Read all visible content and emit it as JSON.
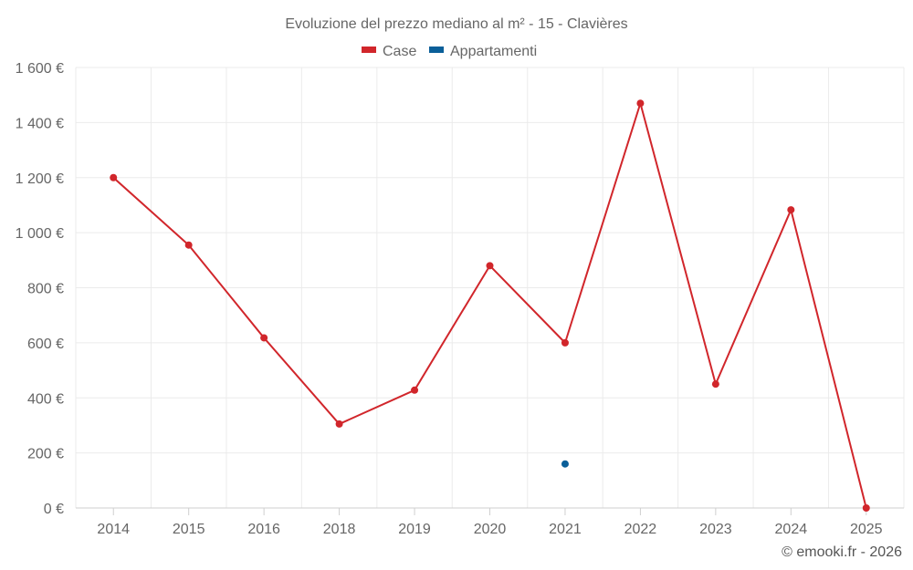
{
  "chart_data": {
    "type": "line",
    "title": "Evoluzione del prezzo mediano al m² - 15 - Clavières",
    "categories": [
      "2014",
      "2015",
      "2016",
      "2018",
      "2019",
      "2020",
      "2021",
      "2022",
      "2023",
      "2024",
      "2025"
    ],
    "series": [
      {
        "name": "Case",
        "color": "#d1262b",
        "values": [
          1200,
          955,
          618,
          305,
          428,
          880,
          600,
          1470,
          450,
          1083,
          0
        ]
      },
      {
        "name": "Appartamenti",
        "color": "#0a5f99",
        "values": [
          null,
          null,
          null,
          null,
          null,
          null,
          160,
          null,
          null,
          null,
          null
        ]
      }
    ],
    "y_ticks": [
      {
        "value": 0,
        "label": "0 €"
      },
      {
        "value": 200,
        "label": "200 €"
      },
      {
        "value": 400,
        "label": "400 €"
      },
      {
        "value": 600,
        "label": "600 €"
      },
      {
        "value": 800,
        "label": "800 €"
      },
      {
        "value": 1000,
        "label": "1 000 €"
      },
      {
        "value": 1200,
        "label": "1 200 €"
      },
      {
        "value": 1400,
        "label": "1 400 €"
      },
      {
        "value": 1600,
        "label": "1 600 €"
      }
    ],
    "ylim": [
      0,
      1600
    ],
    "xlabel": "",
    "ylabel": "",
    "legend_position": "top-center",
    "grid": true,
    "credit": "© emooki.fr - 2026"
  }
}
